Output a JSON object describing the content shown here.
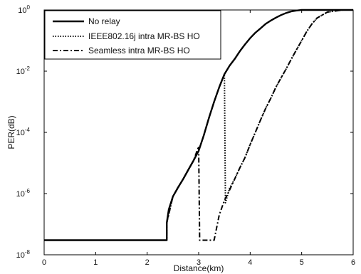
{
  "chart_data": {
    "type": "line",
    "xlabel": "Distance(km)",
    "ylabel": "PER(dB)",
    "xlim": [
      0,
      6
    ],
    "ylim": [
      1e-08,
      1
    ],
    "yscale": "log",
    "x_ticks": [
      "0",
      "1",
      "2",
      "3",
      "4",
      "5",
      "6"
    ],
    "y_ticks": [
      {
        "base": "10",
        "exp": "-8",
        "value": 1e-08
      },
      {
        "base": "10",
        "exp": "-6",
        "value": 1e-06
      },
      {
        "base": "10",
        "exp": "-4",
        "value": 0.0001
      },
      {
        "base": "10",
        "exp": "-2",
        "value": 0.01
      },
      {
        "base": "10",
        "exp": "0",
        "value": 1
      }
    ],
    "grid": false,
    "legend_position": "top-left",
    "series": [
      {
        "name": "No relay",
        "style": "solid",
        "color": "#000000",
        "x": [
          0.0,
          2.38,
          2.38,
          2.42,
          2.5,
          2.6,
          2.7,
          2.8,
          2.9,
          3.0,
          3.1,
          3.2,
          3.3,
          3.4,
          3.5,
          3.6,
          3.7,
          3.8,
          3.9,
          4.0,
          4.1,
          4.2,
          4.3,
          4.4,
          4.5,
          4.6,
          4.7,
          4.8,
          4.9,
          5.0,
          5.2,
          5.5,
          6.0
        ],
        "y": [
          3e-08,
          3e-08,
          1.1e-07,
          3e-07,
          8e-07,
          1.6e-06,
          3e-06,
          6e-06,
          1.2e-05,
          2.5e-05,
          8e-05,
          0.0003,
          0.001,
          0.003,
          0.008,
          0.015,
          0.025,
          0.045,
          0.075,
          0.12,
          0.18,
          0.25,
          0.35,
          0.45,
          0.56,
          0.68,
          0.8,
          0.9,
          0.96,
          1.0,
          1.0,
          1.0,
          1.0
        ]
      },
      {
        "name": "IEEE802.16j intra MR-BS HO",
        "style": "dotted",
        "color": "#000000",
        "x": [
          0.0,
          2.38,
          2.38,
          2.5,
          2.7,
          2.9,
          3.0,
          3.1,
          3.2,
          3.3,
          3.4,
          3.5,
          3.52,
          3.6,
          3.7,
          3.8,
          3.9,
          4.0,
          4.1,
          4.2,
          4.3,
          4.4,
          4.5,
          4.6,
          4.7,
          4.8,
          4.9,
          5.0,
          5.1,
          5.2,
          5.3,
          5.5,
          5.8,
          6.0
        ],
        "y": [
          3e-08,
          3e-08,
          1.1e-07,
          8e-07,
          3e-06,
          1.2e-05,
          2.5e-05,
          8e-05,
          0.0003,
          0.001,
          0.003,
          0.008,
          5e-07,
          1.5e-06,
          3e-06,
          7e-06,
          1.5e-05,
          4e-05,
          0.0001,
          0.00025,
          0.0006,
          0.0013,
          0.003,
          0.006,
          0.012,
          0.025,
          0.05,
          0.1,
          0.2,
          0.35,
          0.55,
          0.85,
          1.0,
          1.0
        ]
      },
      {
        "name": "Seamless intra MR-BS HO",
        "style": "dashdot",
        "color": "#000000",
        "x": [
          0.0,
          2.38,
          2.38,
          2.5,
          2.7,
          2.9,
          3.0,
          3.02,
          3.3,
          3.4,
          3.5,
          3.6,
          3.7,
          3.8,
          3.9,
          4.0,
          4.1,
          4.2,
          4.3,
          4.4,
          4.5,
          4.6,
          4.7,
          4.8,
          4.9,
          5.0,
          5.1,
          5.2,
          5.3,
          5.5,
          5.8,
          6.0
        ],
        "y": [
          3e-08,
          3e-08,
          1.1e-07,
          8e-07,
          3e-06,
          1.2e-05,
          3.5e-05,
          3e-08,
          3e-08,
          2e-07,
          6e-07,
          1.3e-06,
          3e-06,
          7e-06,
          1.5e-05,
          4e-05,
          0.0001,
          0.00025,
          0.0006,
          0.0013,
          0.003,
          0.006,
          0.012,
          0.025,
          0.05,
          0.1,
          0.2,
          0.35,
          0.55,
          0.85,
          1.0,
          1.0
        ]
      }
    ]
  }
}
